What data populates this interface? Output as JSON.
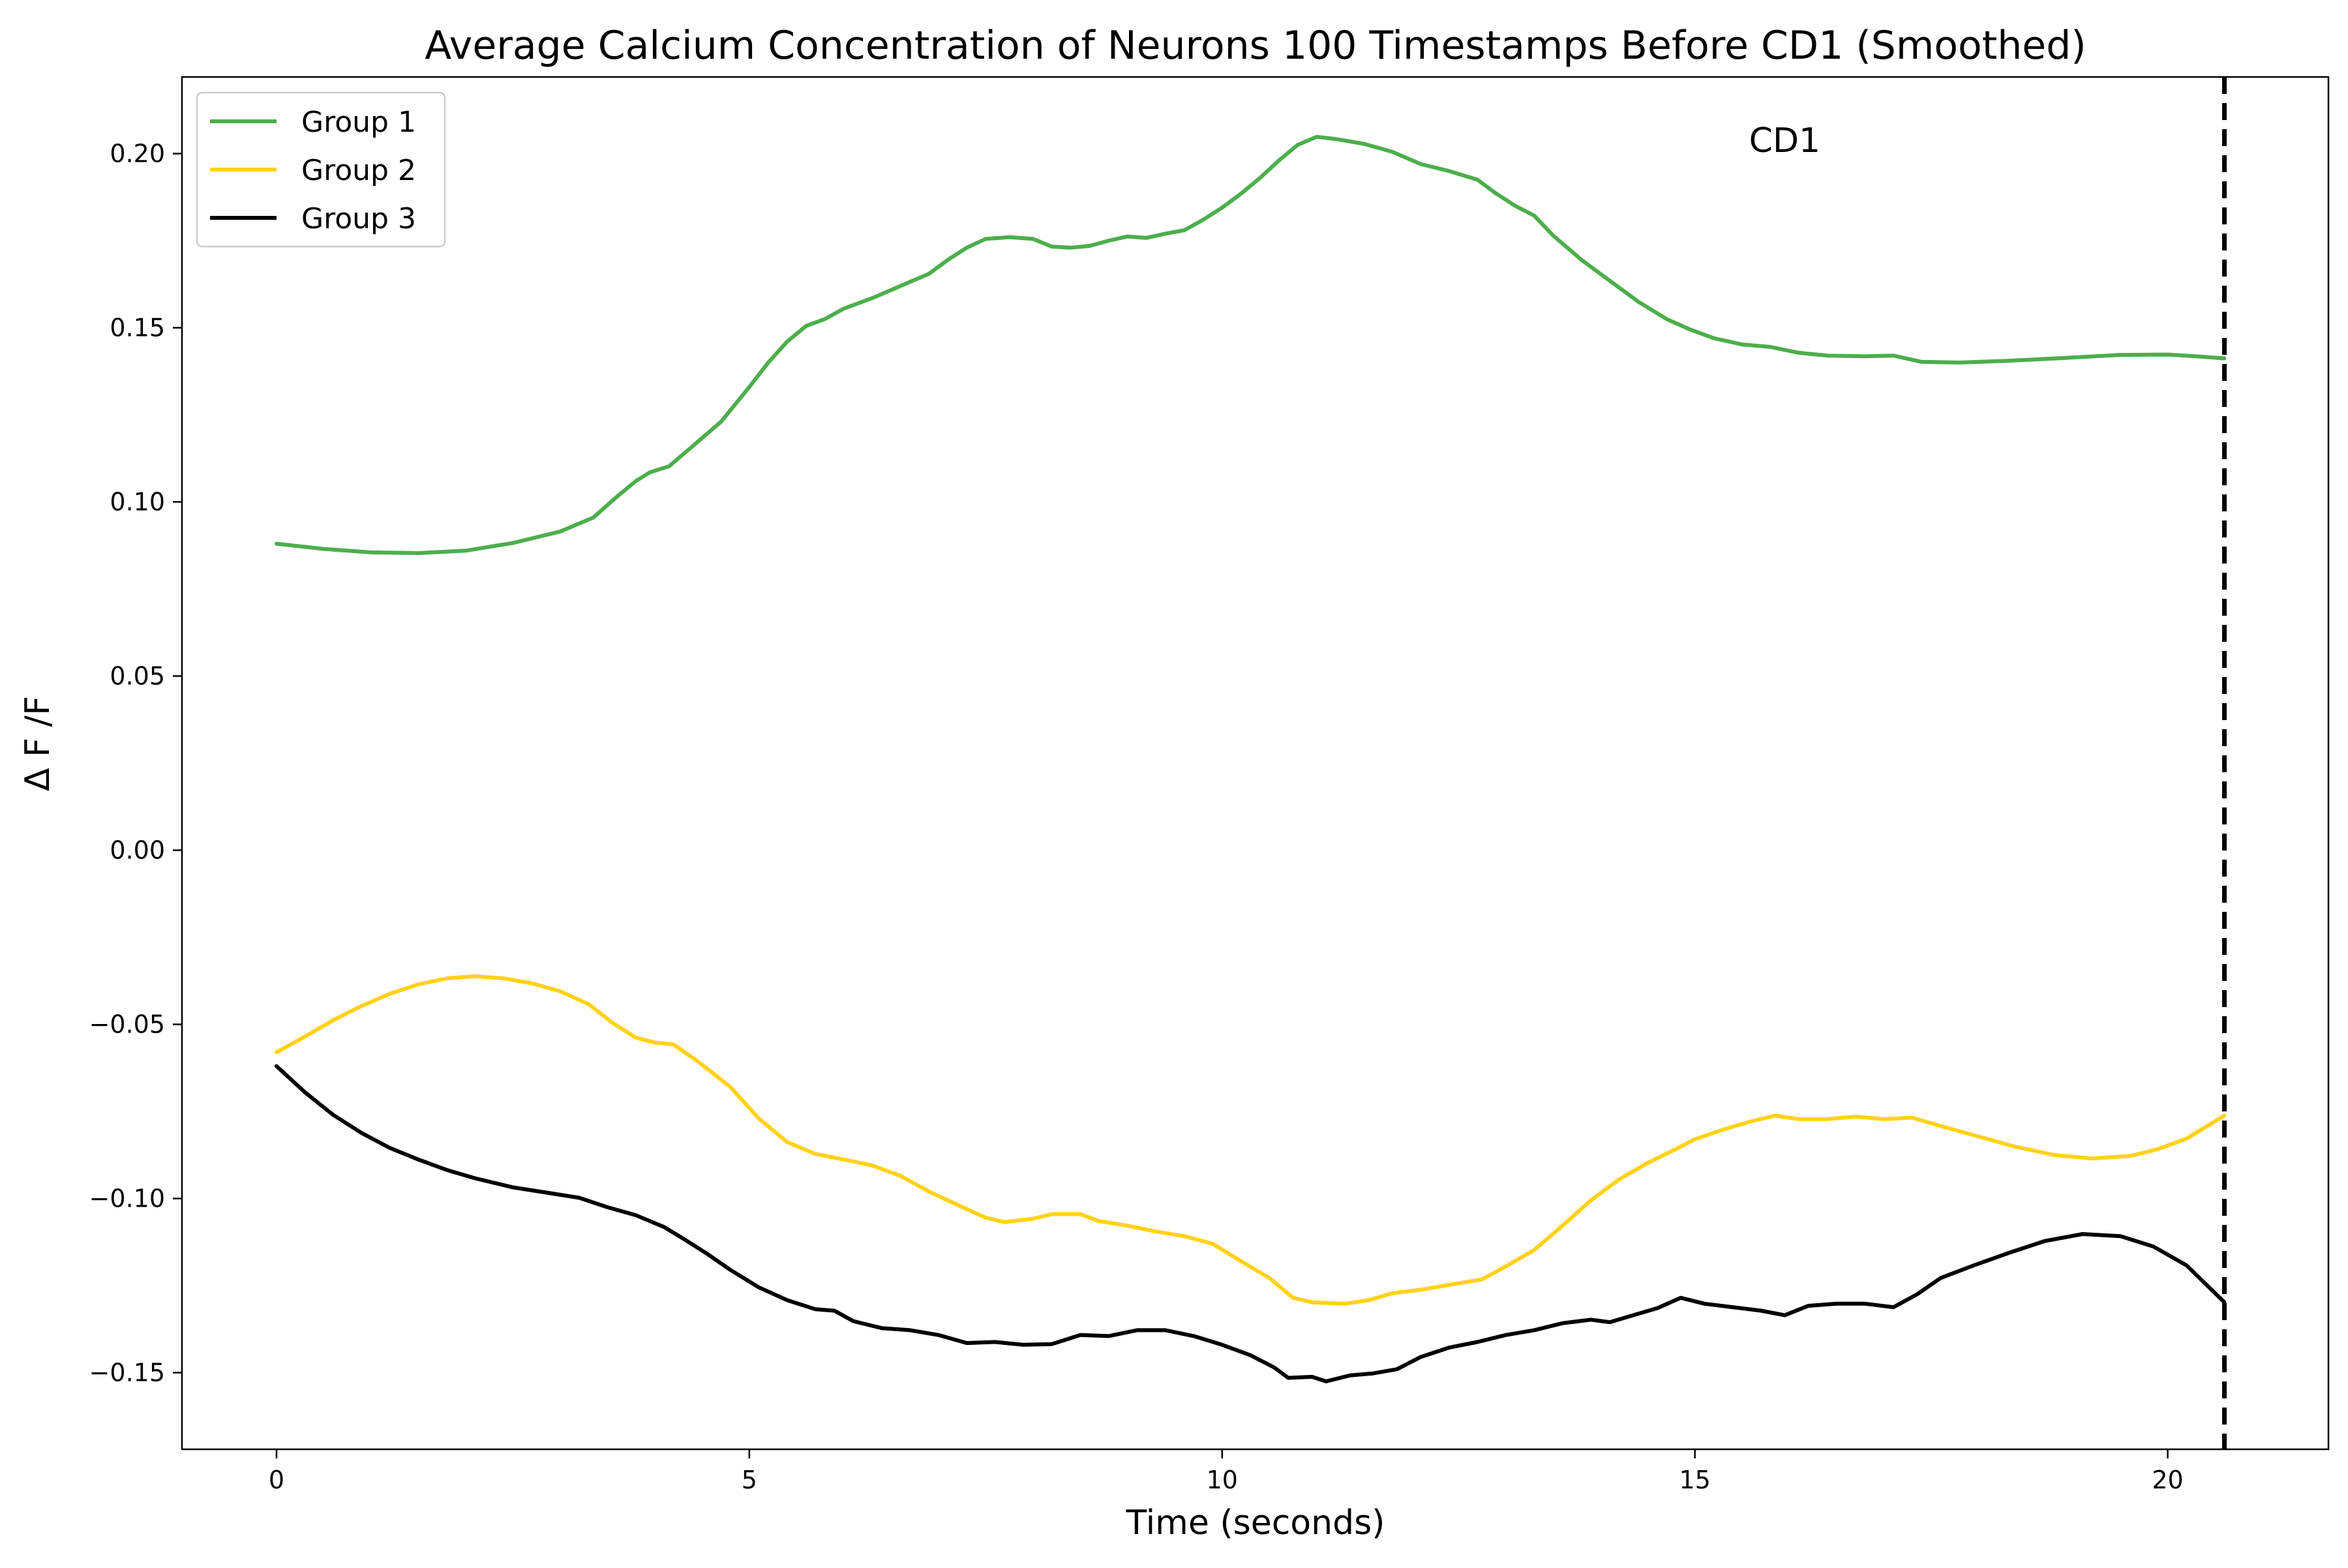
{
  "chart_data": {
    "type": "line",
    "title": "Average Calcium Concentration of Neurons 100 Timestamps Before CD1 (Smoothed)",
    "xlabel": "Time (seconds)",
    "ylabel": "Δ F /F",
    "xlim": [
      -1.0,
      21.7
    ],
    "ylim": [
      -0.172,
      0.222
    ],
    "x_ticks": [
      0,
      5,
      10,
      15,
      20
    ],
    "x_tick_labels": [
      "0",
      "5",
      "10",
      "15",
      "20"
    ],
    "y_ticks": [
      -0.15,
      -0.1,
      -0.05,
      0.0,
      0.05,
      0.1,
      0.15,
      0.2
    ],
    "y_tick_labels": [
      "−0.15",
      "−0.10",
      "−0.05",
      "0.00",
      "0.05",
      "0.10",
      "0.15",
      "0.20"
    ],
    "grid": false,
    "legend_position": "top-left",
    "event_line": {
      "x": 20.6,
      "label": "CD1",
      "color": "#000000",
      "style": "dashed"
    },
    "series": [
      {
        "name": "Group 1",
        "color": "#4cae4c",
        "points": [
          [
            0,
            0.088
          ],
          [
            0.5,
            0.0865
          ],
          [
            1.0,
            0.0855
          ],
          [
            1.5,
            0.0853
          ],
          [
            2.0,
            0.086
          ],
          [
            2.5,
            0.0882
          ],
          [
            3.0,
            0.0915
          ],
          [
            3.35,
            0.0955
          ],
          [
            3.6,
            0.1015
          ],
          [
            3.8,
            0.106
          ],
          [
            3.95,
            0.1085
          ],
          [
            4.15,
            0.1102
          ],
          [
            4.4,
            0.116
          ],
          [
            4.7,
            0.123
          ],
          [
            5.0,
            0.133
          ],
          [
            5.2,
            0.14
          ],
          [
            5.4,
            0.146
          ],
          [
            5.6,
            0.1505
          ],
          [
            5.8,
            0.1525
          ],
          [
            6.0,
            0.1555
          ],
          [
            6.3,
            0.1585
          ],
          [
            6.6,
            0.162
          ],
          [
            6.9,
            0.1655
          ],
          [
            7.1,
            0.1695
          ],
          [
            7.3,
            0.173
          ],
          [
            7.5,
            0.1755
          ],
          [
            7.75,
            0.176
          ],
          [
            8.0,
            0.1755
          ],
          [
            8.2,
            0.1733
          ],
          [
            8.4,
            0.173
          ],
          [
            8.6,
            0.1735
          ],
          [
            8.8,
            0.175
          ],
          [
            9.0,
            0.1762
          ],
          [
            9.2,
            0.1758
          ],
          [
            9.4,
            0.177
          ],
          [
            9.6,
            0.178
          ],
          [
            9.8,
            0.181
          ],
          [
            10.0,
            0.1845
          ],
          [
            10.2,
            0.1885
          ],
          [
            10.4,
            0.193
          ],
          [
            10.6,
            0.198
          ],
          [
            10.8,
            0.2025
          ],
          [
            11.0,
            0.2048
          ],
          [
            11.2,
            0.2042
          ],
          [
            11.5,
            0.2028
          ],
          [
            11.8,
            0.2005
          ],
          [
            12.1,
            0.197
          ],
          [
            12.4,
            0.195
          ],
          [
            12.7,
            0.1925
          ],
          [
            12.9,
            0.1885
          ],
          [
            13.1,
            0.185
          ],
          [
            13.3,
            0.1822
          ],
          [
            13.5,
            0.1765
          ],
          [
            13.8,
            0.1695
          ],
          [
            14.1,
            0.1635
          ],
          [
            14.4,
            0.1575
          ],
          [
            14.7,
            0.1525
          ],
          [
            14.95,
            0.1495
          ],
          [
            15.2,
            0.147
          ],
          [
            15.5,
            0.1452
          ],
          [
            15.8,
            0.1445
          ],
          [
            16.1,
            0.1428
          ],
          [
            16.4,
            0.142
          ],
          [
            16.8,
            0.1418
          ],
          [
            17.1,
            0.142
          ],
          [
            17.4,
            0.1402
          ],
          [
            17.8,
            0.14
          ],
          [
            18.3,
            0.1405
          ],
          [
            18.9,
            0.1413
          ],
          [
            19.5,
            0.1422
          ],
          [
            20.0,
            0.1423
          ],
          [
            20.3,
            0.1418
          ],
          [
            20.6,
            0.1412
          ]
        ]
      },
      {
        "name": "Group 2",
        "color": "#ffd21a",
        "points": [
          [
            0,
            -0.058
          ],
          [
            0.3,
            -0.0535
          ],
          [
            0.6,
            -0.0488
          ],
          [
            0.9,
            -0.0447
          ],
          [
            1.2,
            -0.0412
          ],
          [
            1.5,
            -0.0385
          ],
          [
            1.8,
            -0.0368
          ],
          [
            2.1,
            -0.0362
          ],
          [
            2.4,
            -0.0368
          ],
          [
            2.7,
            -0.0382
          ],
          [
            3.0,
            -0.0405
          ],
          [
            3.3,
            -0.0442
          ],
          [
            3.55,
            -0.0495
          ],
          [
            3.8,
            -0.0538
          ],
          [
            4.0,
            -0.0552
          ],
          [
            4.2,
            -0.0558
          ],
          [
            4.45,
            -0.0605
          ],
          [
            4.8,
            -0.068
          ],
          [
            5.1,
            -0.077
          ],
          [
            5.4,
            -0.0838
          ],
          [
            5.7,
            -0.0872
          ],
          [
            6.0,
            -0.0888
          ],
          [
            6.3,
            -0.0905
          ],
          [
            6.6,
            -0.0935
          ],
          [
            6.9,
            -0.098
          ],
          [
            7.2,
            -0.1018
          ],
          [
            7.5,
            -0.1055
          ],
          [
            7.7,
            -0.1068
          ],
          [
            8.0,
            -0.1058
          ],
          [
            8.2,
            -0.1045
          ],
          [
            8.5,
            -0.1045
          ],
          [
            8.7,
            -0.1065
          ],
          [
            9.0,
            -0.1078
          ],
          [
            9.3,
            -0.1095
          ],
          [
            9.6,
            -0.1108
          ],
          [
            9.9,
            -0.113
          ],
          [
            10.2,
            -0.118
          ],
          [
            10.5,
            -0.1228
          ],
          [
            10.75,
            -0.1285
          ],
          [
            10.95,
            -0.1298
          ],
          [
            11.3,
            -0.1302
          ],
          [
            11.55,
            -0.1292
          ],
          [
            11.8,
            -0.1272
          ],
          [
            12.1,
            -0.1262
          ],
          [
            12.4,
            -0.1248
          ],
          [
            12.75,
            -0.1232
          ],
          [
            13.0,
            -0.1195
          ],
          [
            13.3,
            -0.1148
          ],
          [
            13.6,
            -0.1078
          ],
          [
            13.9,
            -0.1005
          ],
          [
            14.2,
            -0.0945
          ],
          [
            14.5,
            -0.0898
          ],
          [
            14.8,
            -0.0858
          ],
          [
            15.0,
            -0.083
          ],
          [
            15.3,
            -0.0802
          ],
          [
            15.6,
            -0.0778
          ],
          [
            15.85,
            -0.0762
          ],
          [
            16.1,
            -0.0772
          ],
          [
            16.4,
            -0.0772
          ],
          [
            16.7,
            -0.0765
          ],
          [
            17.0,
            -0.0772
          ],
          [
            17.3,
            -0.0768
          ],
          [
            17.6,
            -0.0792
          ],
          [
            18.0,
            -0.0822
          ],
          [
            18.4,
            -0.0852
          ],
          [
            18.8,
            -0.0875
          ],
          [
            19.2,
            -0.0885
          ],
          [
            19.6,
            -0.0878
          ],
          [
            19.9,
            -0.0858
          ],
          [
            20.2,
            -0.0828
          ],
          [
            20.6,
            -0.0762
          ]
        ]
      },
      {
        "name": "Group 3",
        "color": "#000000",
        "points": [
          [
            0,
            -0.062
          ],
          [
            0.3,
            -0.0695
          ],
          [
            0.6,
            -0.076
          ],
          [
            0.9,
            -0.0812
          ],
          [
            1.2,
            -0.0855
          ],
          [
            1.5,
            -0.0888
          ],
          [
            1.8,
            -0.0918
          ],
          [
            2.1,
            -0.0942
          ],
          [
            2.5,
            -0.0968
          ],
          [
            2.9,
            -0.0985
          ],
          [
            3.2,
            -0.0998
          ],
          [
            3.5,
            -0.1025
          ],
          [
            3.8,
            -0.1048
          ],
          [
            4.1,
            -0.1082
          ],
          [
            4.3,
            -0.1115
          ],
          [
            4.55,
            -0.1158
          ],
          [
            4.8,
            -0.1205
          ],
          [
            5.1,
            -0.1255
          ],
          [
            5.4,
            -0.1292
          ],
          [
            5.7,
            -0.1318
          ],
          [
            5.9,
            -0.1322
          ],
          [
            6.1,
            -0.1352
          ],
          [
            6.4,
            -0.1372
          ],
          [
            6.7,
            -0.1378
          ],
          [
            7.0,
            -0.1392
          ],
          [
            7.3,
            -0.1415
          ],
          [
            7.6,
            -0.1412
          ],
          [
            7.9,
            -0.142
          ],
          [
            8.2,
            -0.1418
          ],
          [
            8.5,
            -0.1392
          ],
          [
            8.8,
            -0.1395
          ],
          [
            9.1,
            -0.1378
          ],
          [
            9.4,
            -0.1378
          ],
          [
            9.7,
            -0.1395
          ],
          [
            10.0,
            -0.142
          ],
          [
            10.3,
            -0.145
          ],
          [
            10.55,
            -0.1485
          ],
          [
            10.7,
            -0.1515
          ],
          [
            10.95,
            -0.1512
          ],
          [
            11.1,
            -0.1525
          ],
          [
            11.35,
            -0.1508
          ],
          [
            11.6,
            -0.1502
          ],
          [
            11.85,
            -0.149
          ],
          [
            12.1,
            -0.1455
          ],
          [
            12.4,
            -0.1428
          ],
          [
            12.7,
            -0.1412
          ],
          [
            13.0,
            -0.1392
          ],
          [
            13.3,
            -0.1378
          ],
          [
            13.6,
            -0.1358
          ],
          [
            13.9,
            -0.1348
          ],
          [
            14.1,
            -0.1355
          ],
          [
            14.35,
            -0.1335
          ],
          [
            14.6,
            -0.1315
          ],
          [
            14.85,
            -0.1285
          ],
          [
            15.1,
            -0.1302
          ],
          [
            15.4,
            -0.1312
          ],
          [
            15.7,
            -0.1322
          ],
          [
            15.95,
            -0.1335
          ],
          [
            16.2,
            -0.1308
          ],
          [
            16.5,
            -0.1302
          ],
          [
            16.8,
            -0.1302
          ],
          [
            17.1,
            -0.1312
          ],
          [
            17.35,
            -0.1275
          ],
          [
            17.6,
            -0.1228
          ],
          [
            17.95,
            -0.1192
          ],
          [
            18.3,
            -0.1158
          ],
          [
            18.7,
            -0.1122
          ],
          [
            19.1,
            -0.1102
          ],
          [
            19.5,
            -0.1108
          ],
          [
            19.85,
            -0.1138
          ],
          [
            20.2,
            -0.1192
          ],
          [
            20.6,
            -0.1298
          ]
        ]
      }
    ]
  }
}
